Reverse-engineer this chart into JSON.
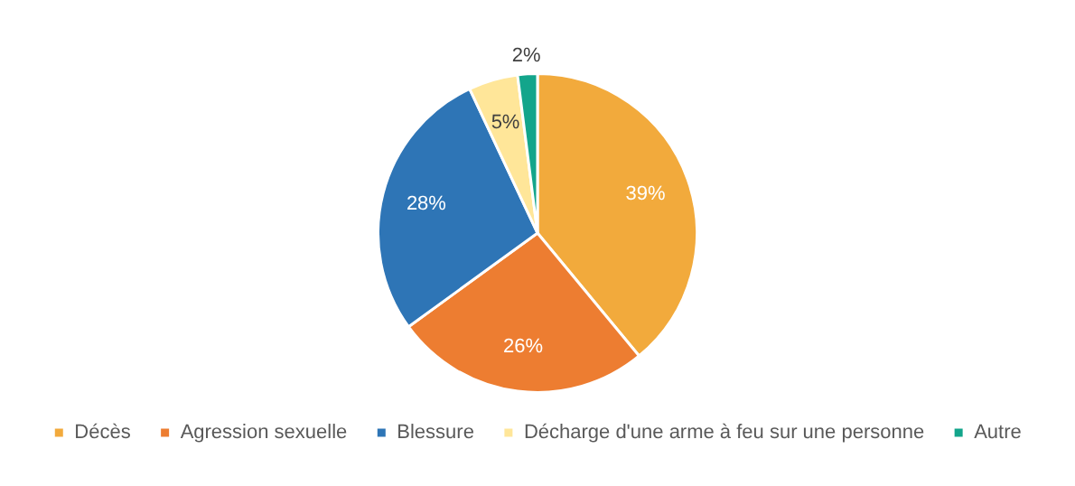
{
  "chart_data": {
    "type": "pie",
    "categories": [
      "Décès",
      "Agression sexuelle",
      "Blessure",
      "Décharge d'une arme à feu sur une personne",
      "Autre"
    ],
    "values": [
      39,
      26,
      28,
      5,
      2
    ],
    "colors": [
      "#f2aa3c",
      "#ed7d31",
      "#2e75b6",
      "#ffe699",
      "#13a58b"
    ],
    "value_labels": [
      "39%",
      "26%",
      "28%",
      "5%",
      "2%"
    ],
    "legend": "bottom"
  }
}
